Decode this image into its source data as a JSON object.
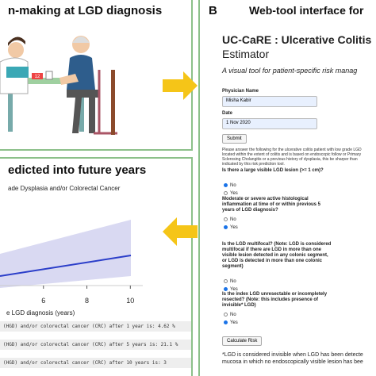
{
  "panel_a": {
    "title": "n-making at LGD diagnosis"
  },
  "panel_b": {
    "letter": "B",
    "title": "Web-tool interface for",
    "app_title": "UC-CaRE : Ulcerative Colitis",
    "app_title_2": "Estimator",
    "app_subtitle": "A visual tool for patient-specific risk manag",
    "physician_label": "Physician Name",
    "physician_value": "Misha Kabir",
    "date_label": "Date",
    "date_value": "1 Nov 2020",
    "submit": "Submit",
    "intro": "Please answer the following for the ulcerative colitis patient with low grade LGD located within the extent of colitis and is based on endoscopic follow or Primary Sclerosing Cholangitis or a previous history of dysplasia, this be sharper than indicated by this risk prediction tool.",
    "questions": [
      {
        "text": "Is there a large visible LGD lesion (>= 1 cm)?",
        "options": [
          "No",
          "Yes"
        ],
        "selected": 0
      },
      {
        "text": "Moderate or severe active histological inflammation at time of or within previous 5 years of LGD diagnosis?",
        "options": [
          "No",
          "Yes"
        ],
        "selected": 1
      },
      {
        "text": "Is the LGD multifocal? (Note: LGD is considered multifocal if there are LGD in more than one visible lesion detected in any colonic segment, or LGD is detected in more than one colonic segment)",
        "options": [
          "No",
          "Yes"
        ],
        "selected": 1
      },
      {
        "text": "Is the index LGD unresectable or incompletely resected? (Note: this includes presence of invisible* LGD)",
        "options": [
          "No",
          "Yes"
        ],
        "selected": 1
      }
    ],
    "calculate": "Calculate Risk",
    "footnote": "*LGD is considered invisible when LGD has been detecte mucosa in which no endoscopically visible lesion has bee"
  },
  "panel_c": {
    "title": "edicted into future years",
    "subtitle": "ade Dysplasia and/or Colorectal Cancer",
    "chart_data": {
      "type": "line",
      "x_label": "e LGD diagnosis (years)",
      "xlim": [
        4,
        10.5
      ],
      "xticks": [
        6,
        8,
        10
      ]
    },
    "results": [
      "(HGD) and/or colorectal cancer (CRC) after 1 year is:  4.62 %",
      "(HGD) and/or colorectal cancer (CRC) after 5 years is:  21.1 %",
      "(HGD) and/or colorectal cancer (CRC) after 10 years is:  3"
    ]
  }
}
